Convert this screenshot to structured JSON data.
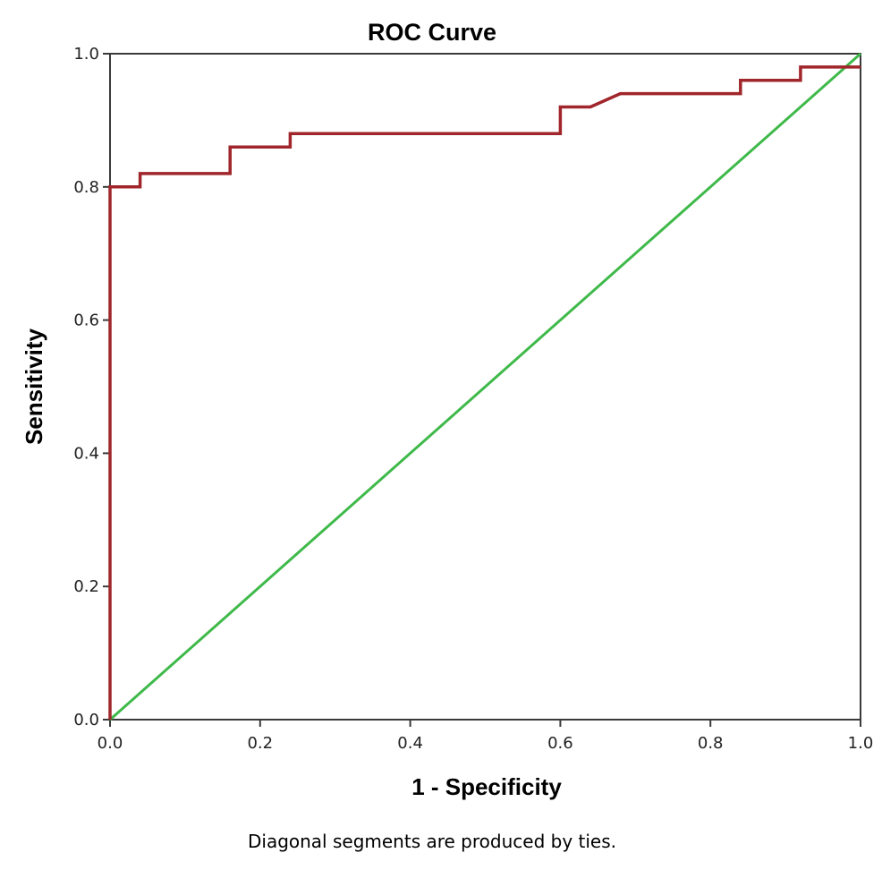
{
  "chart_data": {
    "type": "line",
    "title": "ROC Curve",
    "xlabel": "1 - Specificity",
    "ylabel": "Sensitivity",
    "footnote": "Diagonal segments are produced by ties.",
    "xlim": [
      0,
      1
    ],
    "ylim": [
      0,
      1
    ],
    "x_ticks": [
      "0.0",
      "0.2",
      "0.4",
      "0.6",
      "0.8",
      "1.0"
    ],
    "y_ticks": [
      "0.0",
      "0.2",
      "0.4",
      "0.6",
      "0.8",
      "1.0"
    ],
    "grid": false,
    "legend": "none",
    "series": [
      {
        "color": "#a0262b",
        "x": [
          0,
          0,
          0.04,
          0.04,
          0.16,
          0.16,
          0.24,
          0.24,
          0.6,
          0.6,
          0.64,
          0.68,
          0.84,
          0.84,
          0.92,
          0.92,
          1.0
        ],
        "y": [
          0,
          0.8,
          0.8,
          0.82,
          0.82,
          0.86,
          0.86,
          0.88,
          0.88,
          0.92,
          0.92,
          0.94,
          0.94,
          0.96,
          0.96,
          0.98,
          0.98
        ]
      },
      {
        "color": "#3fb94a",
        "x": [
          0,
          1
        ],
        "y": [
          0,
          1
        ]
      }
    ]
  }
}
